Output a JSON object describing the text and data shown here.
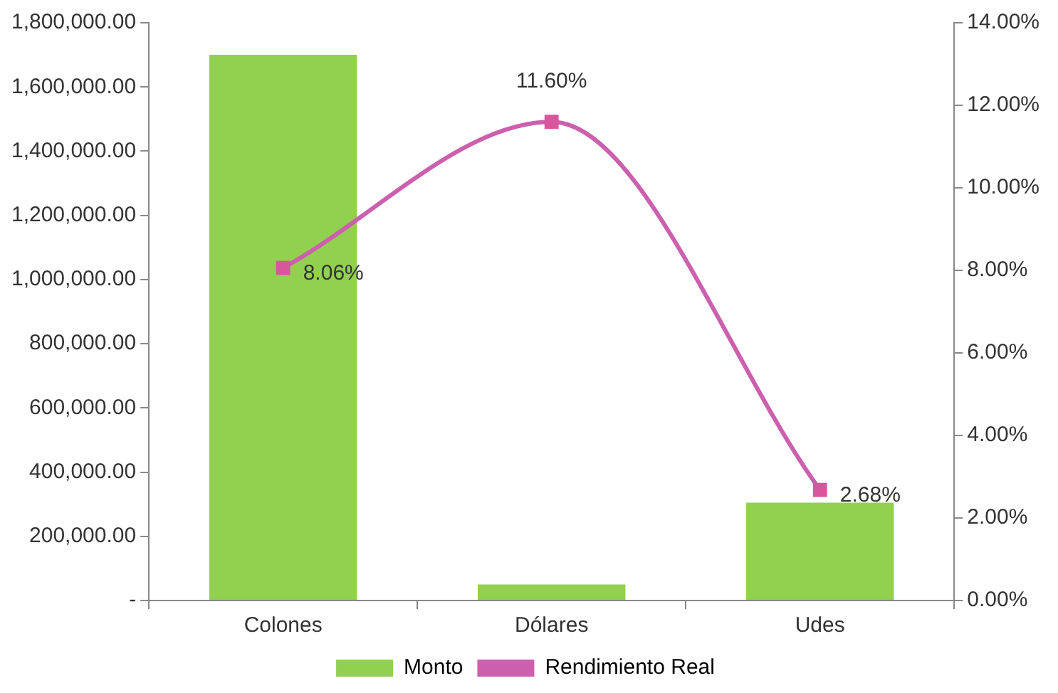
{
  "chart_data": {
    "type": "bar",
    "categories": [
      "Colones",
      "Dólares",
      "Udes"
    ],
    "series": [
      {
        "name": "Monto",
        "color": "#92d050",
        "values": [
          1700000,
          50000,
          305000
        ]
      },
      {
        "name": "Rendimiento Real",
        "type": "line",
        "axis": "y2",
        "color": "#cc5fae",
        "values": [
          8.06,
          11.6,
          2.68
        ],
        "value_labels": [
          "8.06%",
          "11.60%",
          "2.68%"
        ],
        "marker": "square"
      }
    ],
    "ylim": [
      0,
      1800000
    ],
    "yticks": [
      {
        "value": 0,
        "label": "-"
      },
      {
        "value": 200000,
        "label": "200,000.00"
      },
      {
        "value": 400000,
        "label": "400,000.00"
      },
      {
        "value": 600000,
        "label": "600,000.00"
      },
      {
        "value": 800000,
        "label": "800,000.00"
      },
      {
        "value": 1000000,
        "label": "1,000,000.00"
      },
      {
        "value": 1200000,
        "label": "1,200,000.00"
      },
      {
        "value": 1400000,
        "label": "1,400,000.00"
      },
      {
        "value": 1600000,
        "label": "1,600,000.00"
      },
      {
        "value": 1800000,
        "label": "1,800,000.00"
      }
    ],
    "y2lim": [
      0,
      14
    ],
    "y2ticks": [
      {
        "value": 0,
        "label": "0.00%"
      },
      {
        "value": 2,
        "label": "2.00%"
      },
      {
        "value": 4,
        "label": "4.00%"
      },
      {
        "value": 6,
        "label": "6.00%"
      },
      {
        "value": 8,
        "label": "8.00%"
      },
      {
        "value": 10,
        "label": "10.00%"
      },
      {
        "value": 12,
        "label": "12.00%"
      },
      {
        "value": 14,
        "label": "14.00%"
      }
    ],
    "grid": false,
    "legend": "bottom"
  }
}
